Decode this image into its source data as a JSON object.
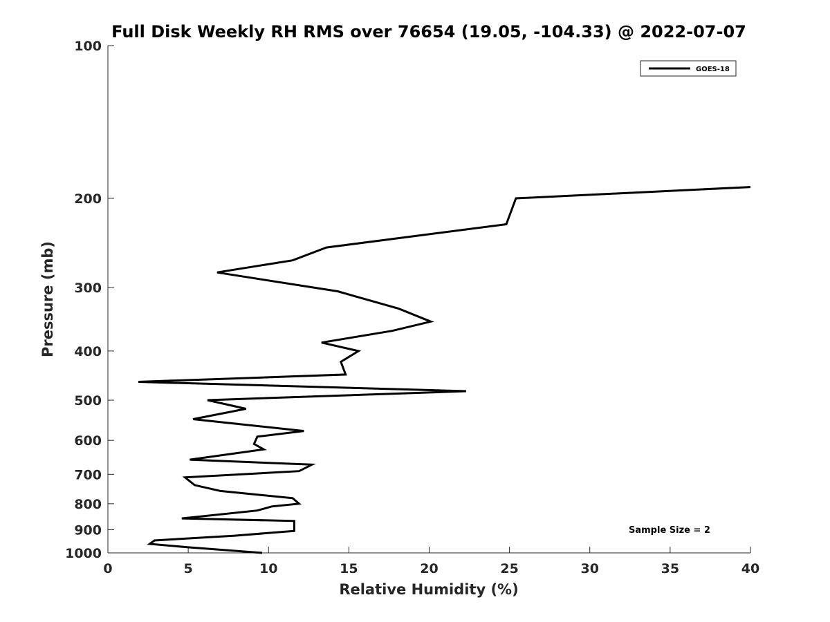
{
  "chart_data": {
    "type": "line",
    "title": "Full Disk Weekly RH RMS over 76654 (19.05, -104.33) @ 2022-07-07",
    "xlabel": "Relative Humidity (%)",
    "ylabel": "Pressure (mb)",
    "xlim": [
      0,
      40
    ],
    "ylim": [
      100,
      1000
    ],
    "y_scale": "log",
    "y_reversed": true,
    "xticks": [
      "0",
      "5",
      "10",
      "15",
      "20",
      "25",
      "30",
      "35",
      "40"
    ],
    "yticks": [
      "100",
      "200",
      "300",
      "400",
      "500",
      "600",
      "700",
      "800",
      "900",
      "1000"
    ],
    "grid": false,
    "legend_position": "top-right",
    "series": [
      {
        "name": "GOES-18",
        "color": "#000000",
        "x": [
          40.0,
          25.4,
          24.8,
          13.6,
          11.5,
          6.8,
          14.3,
          18.1,
          20.1,
          17.7,
          13.3,
          15.6,
          14.5,
          14.8,
          1.9,
          22.3,
          6.2,
          8.6,
          5.3,
          12.2,
          9.3,
          9.1,
          9.7,
          5.1,
          12.7,
          11.9,
          4.8,
          5.4,
          7.0,
          11.5,
          11.9,
          10.2,
          9.3,
          4.6,
          11.6,
          11.6,
          7.9,
          2.9,
          2.6,
          5.0,
          9.6
        ],
        "y": [
          190,
          200,
          225,
          250,
          265,
          280,
          305,
          330,
          350,
          365,
          385,
          400,
          420,
          445,
          460,
          480,
          500,
          520,
          545,
          575,
          590,
          610,
          625,
          655,
          670,
          690,
          710,
          735,
          755,
          780,
          800,
          810,
          825,
          855,
          865,
          905,
          925,
          945,
          960,
          975,
          1000
        ]
      }
    ],
    "annotation": "Sample Size = 2"
  }
}
